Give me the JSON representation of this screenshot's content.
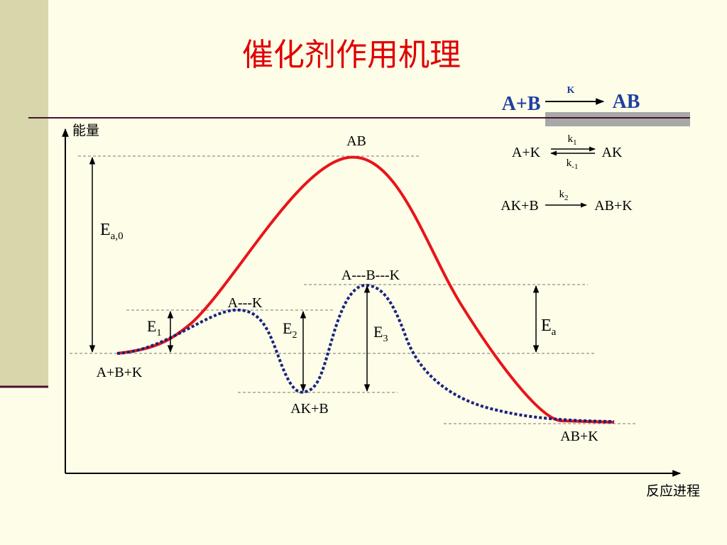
{
  "title": "催化剂作用机理",
  "overall_reaction": {
    "reactants": "A+B",
    "catalyst": "K",
    "product": "AB"
  },
  "steps": [
    {
      "left": "A+K",
      "forward": {
        "base": "k",
        "sub": "1"
      },
      "reverse": {
        "base": "k",
        "sub": "-1"
      },
      "right": "AK"
    },
    {
      "left": "AK+B",
      "forward": {
        "base": "k",
        "sub": "2"
      },
      "right": "AB+K"
    }
  ],
  "axes": {
    "y_label": "能量",
    "x_label": "反应进程"
  },
  "states": {
    "uncatalyzed_peak": "AB",
    "start": "A+B+K",
    "first_transition": "A---K",
    "intermediate": "AK+B",
    "second_transition": "A---B---K",
    "end": "AB+K"
  },
  "energies": [
    {
      "base": "E",
      "sub": "a,0"
    },
    {
      "base": "E",
      "sub": "1"
    },
    {
      "base": "E",
      "sub": "2"
    },
    {
      "base": "E",
      "sub": "3"
    },
    {
      "base": "E",
      "sub": "a"
    }
  ]
}
